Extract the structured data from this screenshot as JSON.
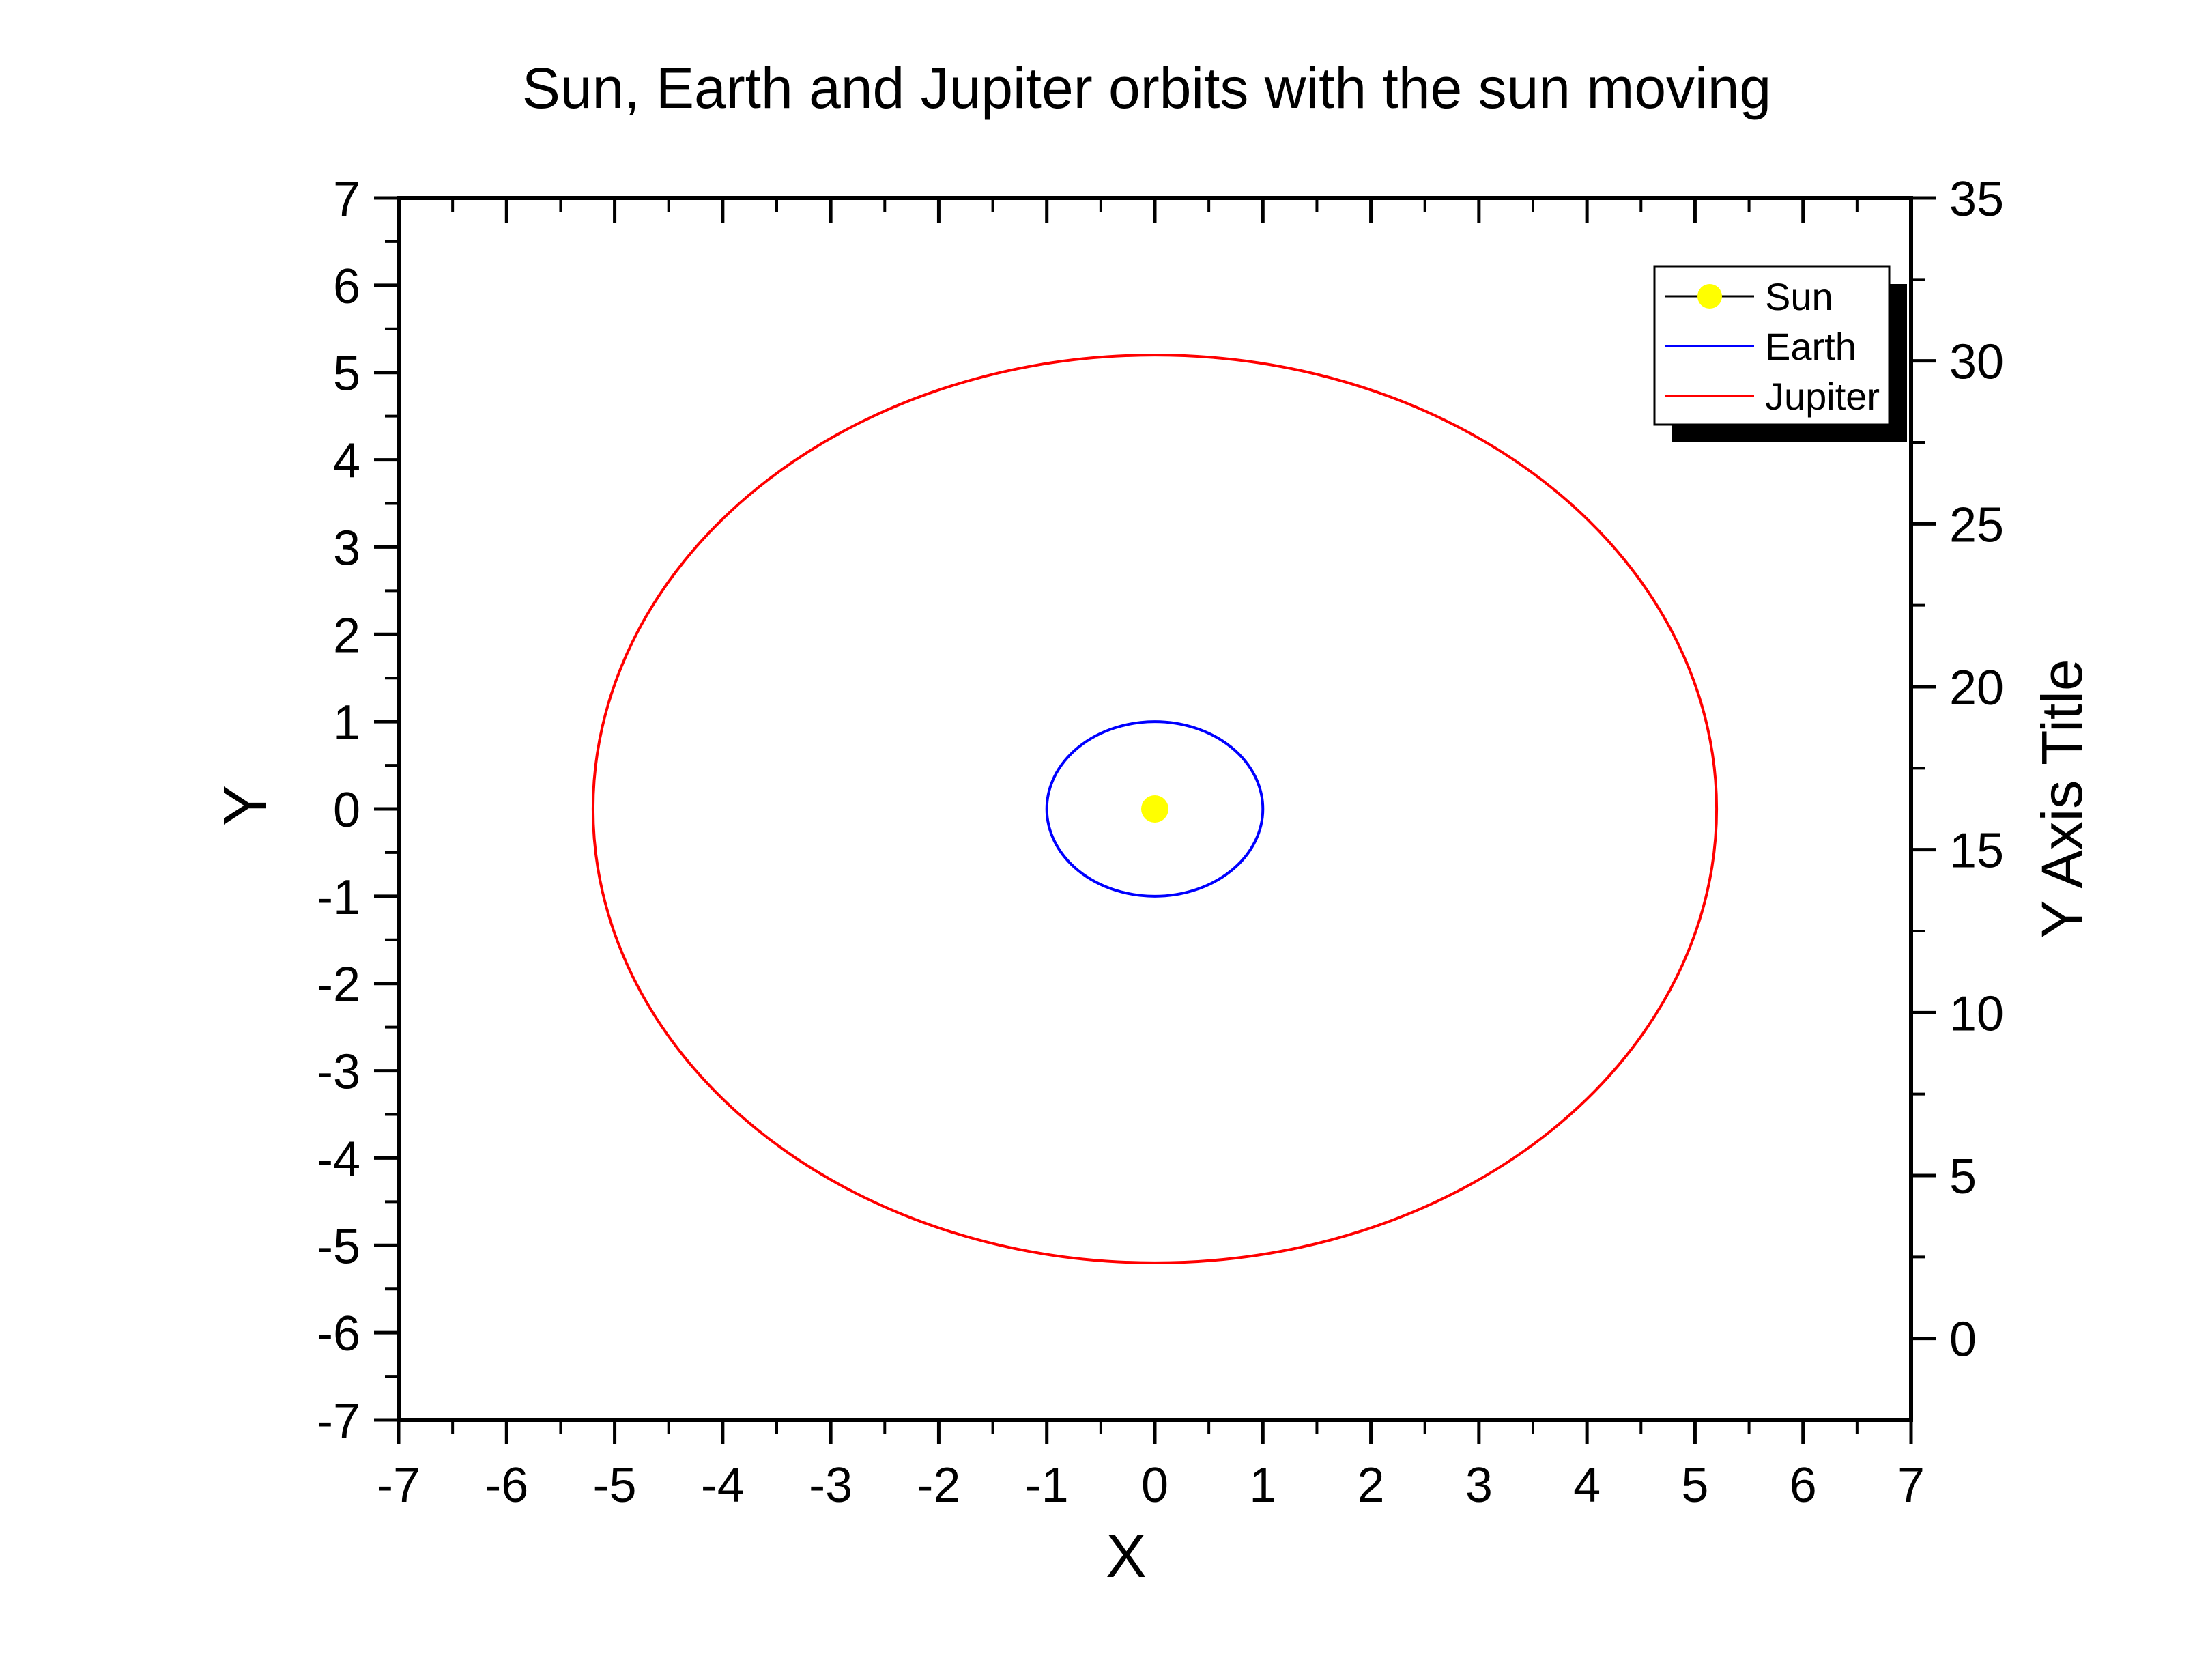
{
  "chart_data": {
    "type": "line",
    "title": "Sun, Earth and Jupiter orbits with the sun  moving",
    "xlabel": "X",
    "ylabel": "Y",
    "y2label": "Y Axis Title",
    "xlim": [
      -7,
      7
    ],
    "ylim": [
      -7,
      7
    ],
    "y2lim": [
      -2.5,
      35
    ],
    "x_ticks": [
      -7,
      -6,
      -5,
      -4,
      -3,
      -2,
      -1,
      0,
      1,
      2,
      3,
      4,
      5,
      6,
      7
    ],
    "y_ticks": [
      -7,
      -6,
      -5,
      -4,
      -3,
      -2,
      -1,
      0,
      1,
      2,
      3,
      4,
      5,
      6,
      7
    ],
    "y2_ticks": [
      0,
      5,
      10,
      15,
      20,
      25,
      30,
      35
    ],
    "grid": false,
    "legend_position": "top-right",
    "series": [
      {
        "name": "Sun",
        "kind": "point",
        "color": "#ffff00",
        "x": [
          0
        ],
        "y": [
          0
        ]
      },
      {
        "name": "Earth",
        "kind": "orbit",
        "color": "#0000ff",
        "center": [
          0,
          0
        ],
        "radius_x": 1.0,
        "radius_y": 1.0
      },
      {
        "name": "Jupiter",
        "kind": "orbit",
        "color": "#ff0000",
        "center": [
          0,
          0
        ],
        "radius_x": 5.2,
        "radius_y": 5.2
      }
    ]
  }
}
